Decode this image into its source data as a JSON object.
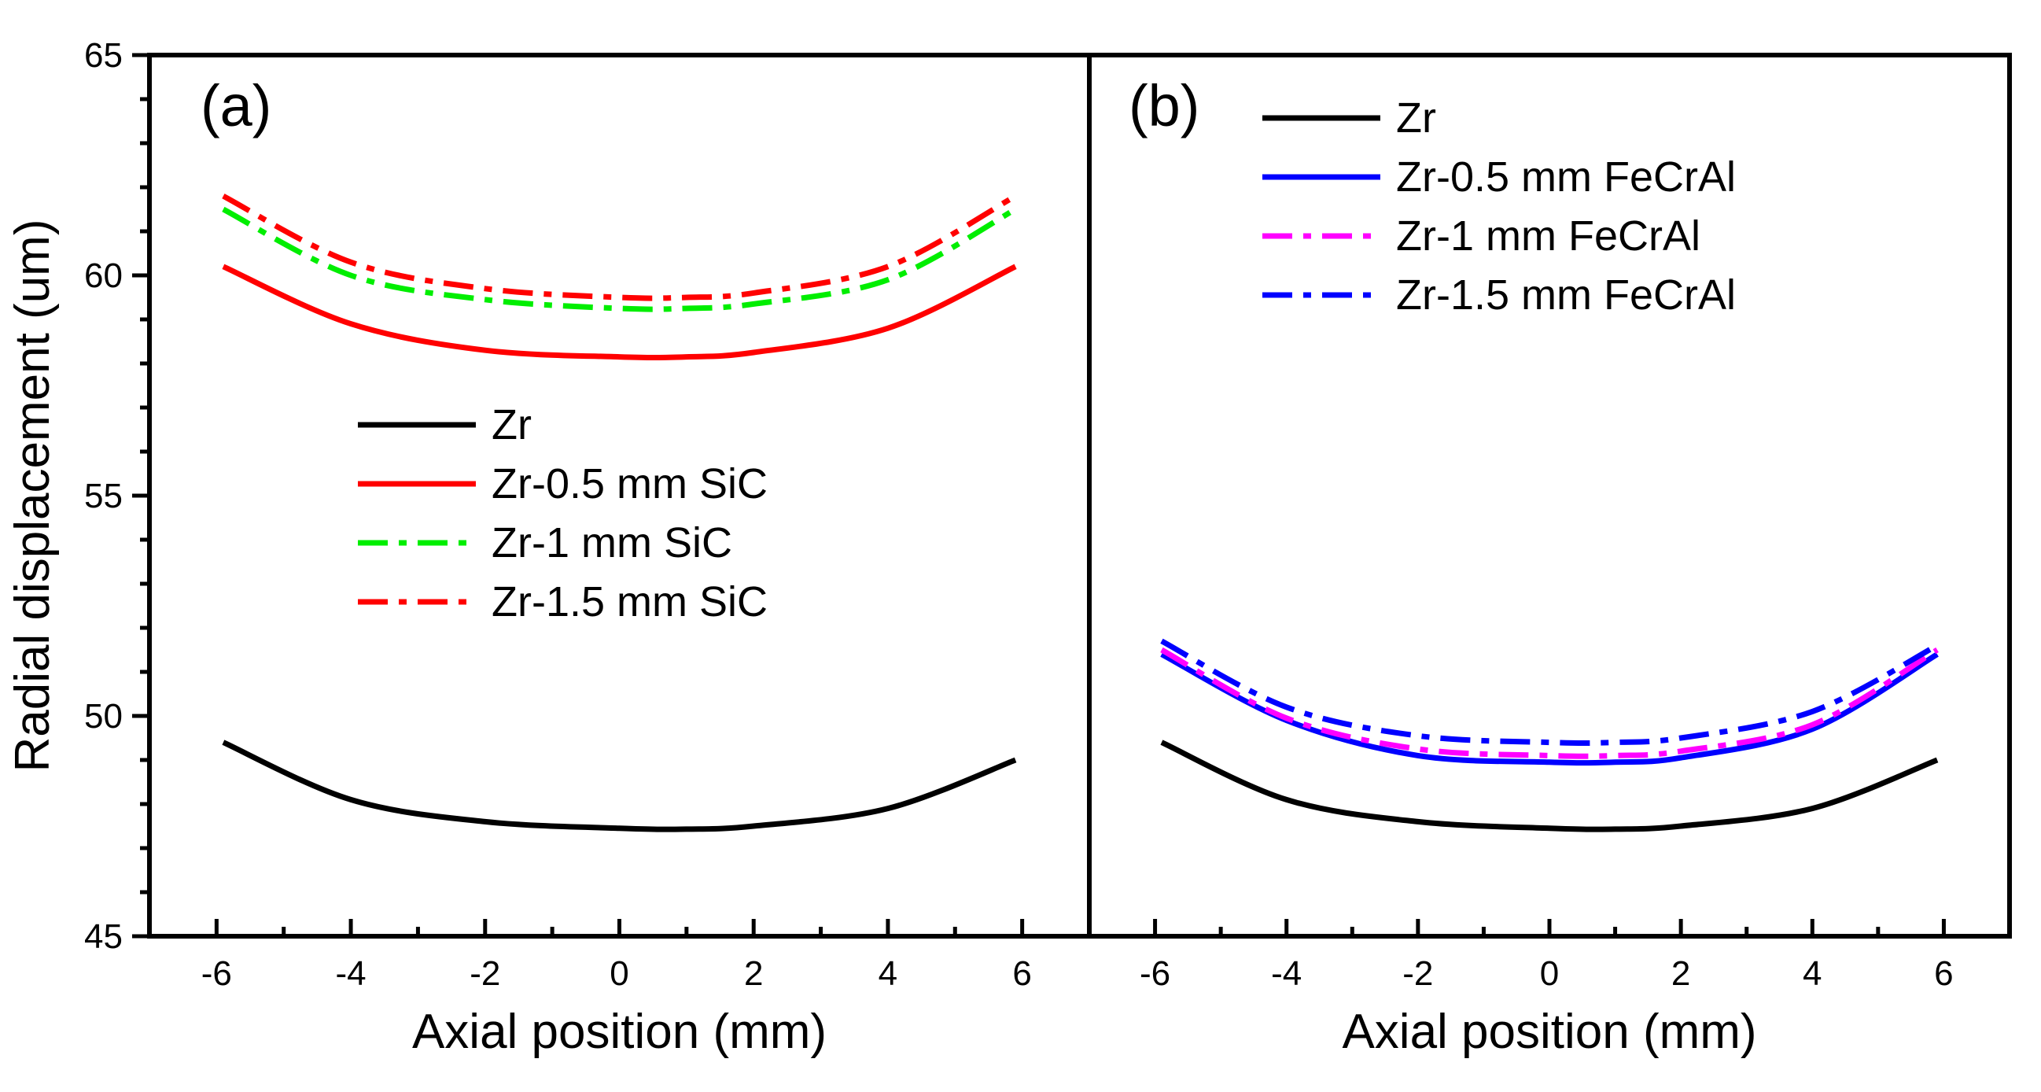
{
  "chart_data": {
    "type": "line",
    "ylabel": "Radial displacement (um)",
    "ylim": [
      45,
      65
    ],
    "yticks": [
      "45",
      "50",
      "55",
      "60",
      "65"
    ],
    "xlim": [
      -7,
      7
    ],
    "grid": false,
    "panels": [
      {
        "panel_label": "(a)",
        "xlabel": "Axial position (mm)",
        "xticks": [
          "-6",
          "-4",
          "-2",
          "0",
          "2",
          "4",
          "6"
        ],
        "legend_position": "center",
        "series": [
          {
            "name": "Zr",
            "color": "#000000",
            "dash": "solid",
            "x": [
              -5.9,
              -4,
              -2,
              0,
              1,
              2,
              4,
              5.9
            ],
            "y": [
              49.4,
              48.1,
              47.6,
              47.45,
              47.43,
              47.5,
              47.9,
              49.0
            ]
          },
          {
            "name": "Zr-0.5 mm SiC",
            "color": "#ff0000",
            "dash": "solid",
            "x": [
              -5.9,
              -4,
              -2,
              0,
              1,
              2,
              4,
              5.9
            ],
            "y": [
              60.2,
              58.9,
              58.3,
              58.15,
              58.15,
              58.25,
              58.8,
              60.2
            ]
          },
          {
            "name": "Zr-1 mm SiC",
            "color": "#00ee00",
            "dash": "dashdot",
            "x": [
              -5.9,
              -4,
              -2,
              0,
              1,
              2,
              4,
              5.9
            ],
            "y": [
              61.5,
              60.0,
              59.45,
              59.25,
              59.25,
              59.35,
              59.9,
              61.5
            ]
          },
          {
            "name": "Zr-1.5 mm SiC",
            "color": "#ff0000",
            "dash": "dashdot",
            "x": [
              -5.9,
              -4,
              -2,
              0,
              1,
              2,
              4,
              5.9
            ],
            "y": [
              61.8,
              60.3,
              59.7,
              59.5,
              59.5,
              59.6,
              60.2,
              61.8
            ]
          }
        ]
      },
      {
        "panel_label": "(b)",
        "xlabel": "Axial position (mm)",
        "xticks": [
          "-6",
          "-4",
          "-2",
          "0",
          "2",
          "4",
          "6"
        ],
        "legend_position": "top",
        "series": [
          {
            "name": "Zr",
            "color": "#000000",
            "dash": "solid",
            "x": [
              -5.9,
              -4,
              -2,
              0,
              1,
              2,
              4,
              5.9
            ],
            "y": [
              49.4,
              48.1,
              47.6,
              47.45,
              47.43,
              47.5,
              47.9,
              49.0
            ]
          },
          {
            "name": "Zr-0.5 mm FeCrAl",
            "color": "#0000ff",
            "dash": "solid",
            "x": [
              -5.9,
              -4,
              -2,
              0,
              1,
              2,
              4,
              5.9
            ],
            "y": [
              51.4,
              49.9,
              49.1,
              48.95,
              48.95,
              49.05,
              49.7,
              51.4
            ]
          },
          {
            "name": "Zr-1 mm FeCrAl",
            "color": "#ff00ff",
            "dash": "dashdot",
            "x": [
              -5.9,
              -4,
              -2,
              0,
              1,
              2,
              4,
              5.9
            ],
            "y": [
              51.5,
              49.95,
              49.25,
              49.1,
              49.1,
              49.2,
              49.8,
              51.5
            ]
          },
          {
            "name": "Zr-1.5 mm FeCrAl",
            "color": "#0000ff",
            "dash": "dashdot",
            "x": [
              -5.9,
              -4,
              -2,
              0,
              1,
              2,
              4,
              5.9
            ],
            "y": [
              51.7,
              50.2,
              49.55,
              49.4,
              49.4,
              49.5,
              50.1,
              51.6
            ]
          }
        ]
      }
    ]
  }
}
